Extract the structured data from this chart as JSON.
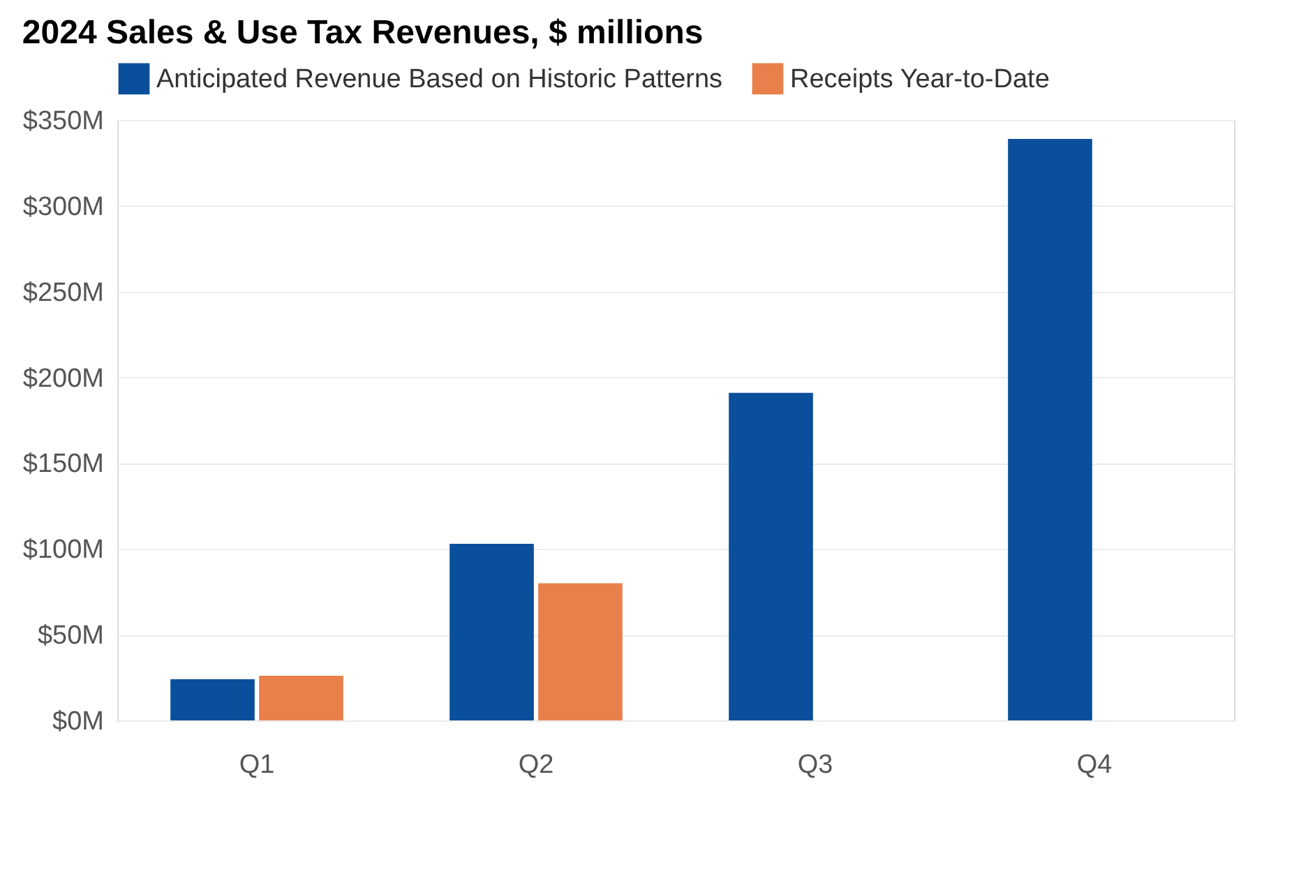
{
  "chart_data": {
    "type": "bar",
    "title": "2024 Sales & Use Tax Revenues, $ millions",
    "categories": [
      "Q1",
      "Q2",
      "Q3",
      "Q4"
    ],
    "series": [
      {
        "name": "Anticipated Revenue Based on Historic Patterns",
        "color": "#0a4f9c",
        "values": [
          24,
          103,
          191,
          339
        ]
      },
      {
        "name": "Receipts Year-to-Date",
        "color": "#e97f4a",
        "values": [
          26,
          80,
          null,
          null
        ]
      }
    ],
    "ylim": [
      0,
      350
    ],
    "yticks": [
      {
        "value": 0,
        "label": "$0M"
      },
      {
        "value": 50,
        "label": "$50M"
      },
      {
        "value": 100,
        "label": "$100M"
      },
      {
        "value": 150,
        "label": "$150M"
      },
      {
        "value": 200,
        "label": "$200M"
      },
      {
        "value": 250,
        "label": "$250M"
      },
      {
        "value": 300,
        "label": "$300M"
      },
      {
        "value": 350,
        "label": "$350M"
      }
    ],
    "grid": "y",
    "legend": "top left"
  }
}
